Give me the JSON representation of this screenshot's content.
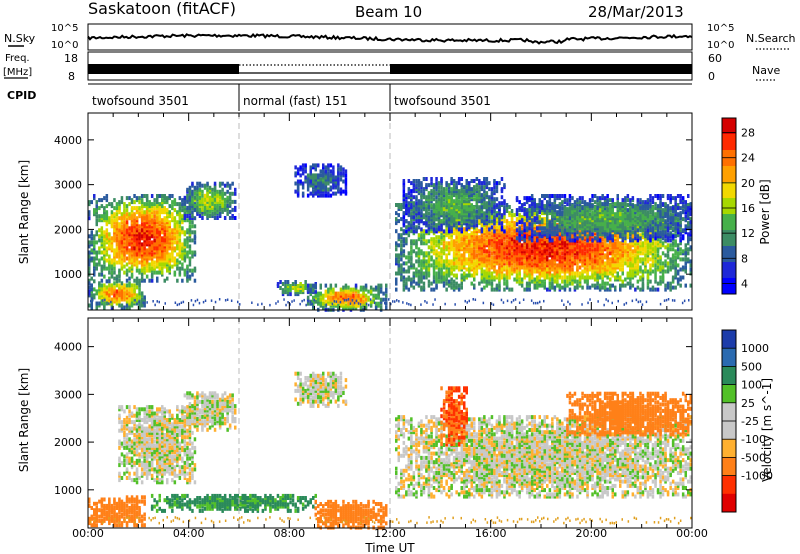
{
  "header": {
    "station": "Saskatoon (fitACF)",
    "beam": "Beam 10",
    "date": "28/Mar/2013"
  },
  "strips": {
    "nsky_label": "N.Sky",
    "nsearch_label": "N.Search",
    "nsky_ticks": [
      "10^5",
      "10^0"
    ],
    "nsky_right_ticks": [
      "10^5",
      "10^0"
    ],
    "freq_label_1": "Freq.",
    "freq_label_2": "[MHz]",
    "freq_ticks": [
      "18",
      "8"
    ],
    "nave_label": "Nave",
    "nave_ticks": [
      "60",
      "0"
    ],
    "cpid_label": "CPID",
    "cpid_segments": [
      {
        "label": "twofsound 3501",
        "start_hour": 0,
        "end_hour": 6
      },
      {
        "label": "normal (fast) 151",
        "start_hour": 6,
        "end_hour": 12
      },
      {
        "label": "twofsound 3501",
        "start_hour": 12,
        "end_hour": 24
      }
    ]
  },
  "power_panel": {
    "ylabel": "Slant Range [km]",
    "cbar_label": "Power [dB]",
    "cbar_ticks": [
      "28",
      "24",
      "20",
      "16",
      "12",
      "8",
      "4"
    ],
    "cbar_colors": [
      "#d40000",
      "#ff2a00",
      "#ff7000",
      "#ffa000",
      "#f2d800",
      "#a6d800",
      "#46b04a",
      "#3c8c64",
      "#2a5a9e",
      "#1e28d8",
      "#0000ff"
    ]
  },
  "velocity_panel": {
    "ylabel": "Slant Range [km]",
    "cbar_label": "Velocity [m s^-1]",
    "cbar_ticks": [
      "1000",
      "500",
      "100",
      "25",
      "-25",
      "-100",
      "-500",
      "-1000"
    ],
    "cbar_colors": [
      "#1c3caa",
      "#2a6ab0",
      "#2a8a5a",
      "#52c028",
      "#c8c8c8",
      "#c8c8c8",
      "#ffb030",
      "#ff8018",
      "#ff3000",
      "#e00000"
    ],
    "ground_scatter_color": "#c8c8c8"
  },
  "chart_data": {
    "type": "heatmap",
    "x_unit": "hours UT",
    "xlim": [
      0,
      24
    ],
    "ylim": [
      200,
      4600
    ],
    "x_ticks": [
      "00:00",
      "04:00",
      "08:00",
      "12:00",
      "16:00",
      "20:00",
      "00:00"
    ],
    "y_ticks": [
      "1000",
      "2000",
      "3000",
      "4000"
    ],
    "xlabel": "Time UT",
    "ylabel": "Slant Range [km]",
    "mode_boundaries_hours": [
      6,
      12
    ],
    "power_dB_range": [
      0,
      30
    ],
    "velocity_range": [
      -1000,
      1000
    ],
    "power_regions": [
      {
        "t0": 0.0,
        "t1": 4.3,
        "r0": 900,
        "r1": 2800,
        "peak_dB": 28
      },
      {
        "t0": 0.0,
        "t1": 2.3,
        "r0": 300,
        "r1": 900,
        "peak_dB": 24
      },
      {
        "t0": 3.8,
        "t1": 5.8,
        "r0": 2300,
        "r1": 3100,
        "peak_dB": 16
      },
      {
        "t0": 7.5,
        "t1": 9.0,
        "r0": 600,
        "r1": 900,
        "peak_dB": 16
      },
      {
        "t0": 8.7,
        "t1": 11.8,
        "r0": 250,
        "r1": 800,
        "peak_dB": 24
      },
      {
        "t0": 8.2,
        "t1": 10.2,
        "r0": 2800,
        "r1": 3500,
        "peak_dB": 8
      },
      {
        "t0": 12.2,
        "t1": 24.0,
        "r0": 700,
        "r1": 2600,
        "peak_dB": 28
      },
      {
        "t0": 12.5,
        "t1": 16.5,
        "r0": 2000,
        "r1": 3200,
        "peak_dB": 12
      },
      {
        "t0": 17.0,
        "t1": 24.0,
        "r0": 1800,
        "r1": 2800,
        "peak_dB": 12
      }
    ],
    "velocity_regions": [
      {
        "t0": 0.0,
        "t1": 2.3,
        "r0": 300,
        "r1": 900,
        "velocity": -300
      },
      {
        "t0": 1.2,
        "t1": 4.3,
        "r0": 1200,
        "r1": 2800,
        "velocity": 0
      },
      {
        "t0": 3.8,
        "t1": 5.8,
        "r0": 2300,
        "r1": 3100,
        "velocity": 0
      },
      {
        "t0": 2.5,
        "t1": 9.0,
        "r0": 600,
        "r1": 950,
        "velocity": 150
      },
      {
        "t0": 9.0,
        "t1": 11.8,
        "r0": 250,
        "r1": 800,
        "velocity": -300
      },
      {
        "t0": 8.2,
        "t1": 10.2,
        "r0": 2800,
        "r1": 3500,
        "velocity": 0
      },
      {
        "t0": 12.2,
        "t1": 24.0,
        "r0": 900,
        "r1": 2600,
        "velocity": 0
      },
      {
        "t0": 14.0,
        "t1": 15.0,
        "r0": 2000,
        "r1": 3200,
        "velocity": -500
      },
      {
        "t0": 19.0,
        "t1": 24.0,
        "r0": 2200,
        "r1": 3100,
        "velocity": -200
      }
    ]
  }
}
